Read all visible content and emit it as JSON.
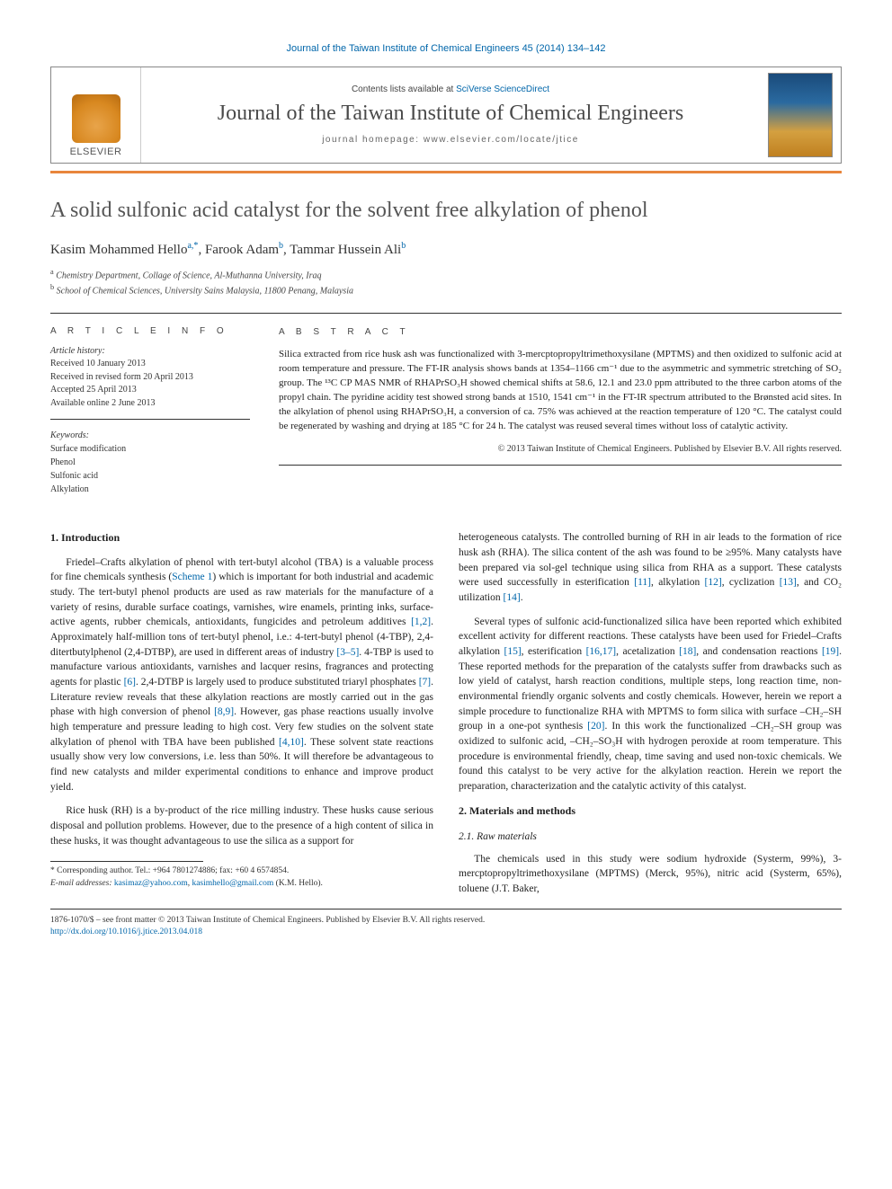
{
  "running_header": "Journal of the Taiwan Institute of Chemical Engineers 45 (2014) 134–142",
  "journal_box": {
    "contents_prefix": "Contents lists available at ",
    "contents_link": "SciVerse ScienceDirect",
    "journal_name": "Journal of the Taiwan Institute of Chemical Engineers",
    "homepage_prefix": "journal homepage: ",
    "homepage_url": "www.elsevier.com/locate/jtice",
    "publisher_label": "ELSEVIER"
  },
  "article": {
    "title": "A solid sulfonic acid catalyst for the solvent free alkylation of phenol",
    "authors_html": "Kasim Mohammed Hello",
    "author1": "Kasim Mohammed Hello",
    "author1_sup": "a,*",
    "author2": ", Farook Adam",
    "author2_sup": "b",
    "author3": ", Tammar Hussein Ali",
    "author3_sup": "b",
    "affiliations": {
      "a": "Chemistry Department, Collage of Science, Al-Muthanna University, Iraq",
      "b": "School of Chemical Sciences, University Sains Malaysia, 11800 Penang, Malaysia"
    }
  },
  "info": {
    "label": "A R T I C L E   I N F O",
    "history_heading": "Article history:",
    "received": "Received 10 January 2013",
    "revised": "Received in revised form 20 April 2013",
    "accepted": "Accepted 25 April 2013",
    "online": "Available online 2 June 2013",
    "keywords_heading": "Keywords:",
    "keywords": [
      "Surface modification",
      "Phenol",
      "Sulfonic acid",
      "Alkylation"
    ]
  },
  "abstract": {
    "label": "A B S T R A C T",
    "text": "Silica extracted from rice husk ash was functionalized with 3-mercptopropyltrimethoxysilane (MPTMS) and then oxidized to sulfonic acid at room temperature and pressure. The FT-IR analysis shows bands at 1354–1166 cm⁻¹ due to the asymmetric and symmetric stretching of SO₂ group. The ¹³C CP MAS NMR of RHAPrSO₃H showed chemical shifts at 58.6, 12.1 and 23.0 ppm attributed to the three carbon atoms of the propyl chain. The pyridine acidity test showed strong bands at 1510, 1541 cm⁻¹ in the FT-IR spectrum attributed to the Brønsted acid sites. In the alkylation of phenol using RHAPrSO₃H, a conversion of ca. 75% was achieved at the reaction temperature of 120 °C. The catalyst could be regenerated by washing and drying at 185 °C for 24 h. The catalyst was reused several times without loss of catalytic activity.",
    "copyright": "© 2013 Taiwan Institute of Chemical Engineers. Published by Elsevier B.V. All rights reserved."
  },
  "body": {
    "h_intro": "1. Introduction",
    "p1a": "Friedel–Crafts alkylation of phenol with tert-butyl alcohol (TBA) is a valuable process for fine chemicals synthesis (",
    "p1_scheme": "Scheme 1",
    "p1b": ") which is important for both industrial and academic study. The tert-butyl phenol products are used as raw materials for the manufacture of a variety of resins, durable surface coatings, varnishes, wire enamels, printing inks, surface-active agents, rubber chemicals, antioxidants, fungicides and petroleum additives ",
    "p1_r1": "[1,2]",
    "p1c": ". Approximately half-million tons of tert-butyl phenol, i.e.: 4-tert-butyl phenol (4-TBP), 2,4-ditertbutylphenol (2,4-DTBP), are used in different areas of industry ",
    "p1_r2": "[3–5]",
    "p1d": ". 4-TBP is used to manufacture various antioxidants, varnishes and lacquer resins, fragrances and protecting agents for plastic ",
    "p1_r3": "[6]",
    "p1e": ". 2,4-DTBP is largely used to produce substituted triaryl phosphates ",
    "p1_r4": "[7]",
    "p1f": ". Literature review reveals that these alkylation reactions are mostly carried out in the gas phase with high conversion of phenol ",
    "p1_r5": "[8,9]",
    "p1g": ". However, gas phase reactions usually involve high temperature and pressure leading to high cost. Very few studies on the solvent state alkylation of phenol with TBA have been published ",
    "p1_r6": "[4,10]",
    "p1h": ". These solvent state reactions usually show very low conversions, i.e. less than 50%. It will therefore be advantageous to find new catalysts and milder experimental conditions to enhance and improve product yield.",
    "p2": "Rice husk (RH) is a by-product of the rice milling industry. These husks cause serious disposal and pollution problems. However, due to the presence of a high content of silica in these husks, it was thought advantageous to use the silica as a support for",
    "p3a": "heterogeneous catalysts. The controlled burning of RH in air leads to the formation of rice husk ash (RHA). The silica content of the ash was found to be ≥95%. Many catalysts have been prepared via sol-gel technique using silica from RHA as a support. These catalysts were used successfully in esterification ",
    "p3_r1": "[11]",
    "p3b": ", alkylation ",
    "p3_r2": "[12]",
    "p3c": ", cyclization ",
    "p3_r3": "[13]",
    "p3d": ", and CO₂ utilization ",
    "p3_r4": "[14]",
    "p3e": ".",
    "p4a": "Several types of sulfonic acid-functionalized silica have been reported which exhibited excellent activity for different reactions. These catalysts have been used for Friedel–Crafts alkylation ",
    "p4_r1": "[15]",
    "p4b": ", esterification ",
    "p4_r2": "[16,17]",
    "p4c": ", acetalization ",
    "p4_r3": "[18]",
    "p4d": ", and condensation reactions ",
    "p4_r4": "[19]",
    "p4e": ". These reported methods for the preparation of the catalysts suffer from drawbacks such as low yield of catalyst, harsh reaction conditions, multiple steps, long reaction time, non-environmental friendly organic solvents and costly chemicals. However, herein we report a simple procedure to functionalize RHA with MPTMS to form silica with surface –CH₂–SH group in a one-pot synthesis ",
    "p4_r5": "[20]",
    "p4f": ". In this work the functionalized –CH₂–SH group was oxidized to sulfonic acid, –CH₂–SO₃H with hydrogen peroxide at room temperature. This procedure is environmental friendly, cheap, time saving and used non-toxic chemicals. We found this catalyst to be very active for the alkylation reaction. Herein we report the preparation, characterization and the catalytic activity of this catalyst.",
    "h_mat": "2. Materials and methods",
    "h_raw": "2.1. Raw materials",
    "p5": "The chemicals used in this study were sodium hydroxide (Systerm, 99%), 3-mercptopropyltrimethoxysilane (MPTMS) (Merck, 95%), nitric acid (Systerm, 65%), toluene (J.T. Baker,"
  },
  "footnotes": {
    "corr": "* Corresponding author. Tel.: +964 7801274886; fax: +60 4 6574854.",
    "email_label": "E-mail addresses: ",
    "email1": "kasimaz@yahoo.com",
    "email2": "kasimhello@gmail.com",
    "email_tail": " (K.M. Hello)."
  },
  "bottom": {
    "line1": "1876-1070/$ – see front matter © 2013 Taiwan Institute of Chemical Engineers. Published by Elsevier B.V. All rights reserved.",
    "doi": "http://dx.doi.org/10.1016/j.jtice.2013.04.018"
  },
  "colors": {
    "link": "#0066aa",
    "rule": "#e8863c",
    "text": "#222222"
  }
}
